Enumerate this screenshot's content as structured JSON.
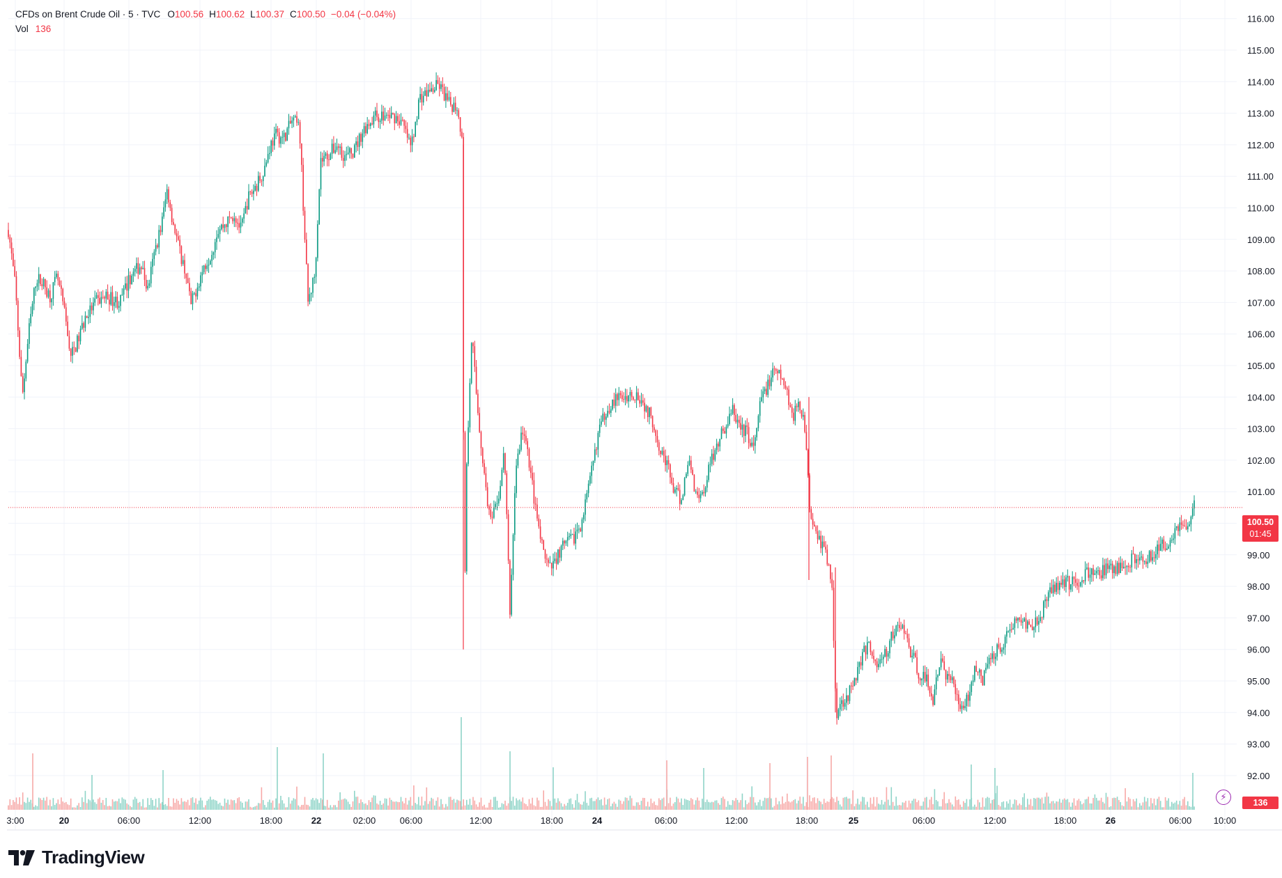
{
  "legend": {
    "symbol": "CFDs on Brent Crude Oil · 5 · TVC",
    "open_label": "O",
    "open_value": "100.56",
    "high_label": "H",
    "high_value": "100.62",
    "low_label": "L",
    "low_value": "100.37",
    "close_label": "C",
    "close_value": "100.50",
    "change": "−0.04 (−0.04%)",
    "volume_label": "Vol",
    "volume_value": "136"
  },
  "price_tag": {
    "price": "100.50",
    "countdown": "01:45"
  },
  "volume_tag": "136",
  "branding": {
    "name": "TradingView"
  },
  "colors": {
    "up": "#089981",
    "down": "#f23645",
    "up_volume": "#8fd4c8",
    "down_volume": "#f7a9a7",
    "grid": "#f0f3fa",
    "text": "#131722"
  },
  "chart_data": {
    "type": "candlestick",
    "title": "CFDs on Brent Crude Oil",
    "interval": "5",
    "source": "TVC",
    "y_axis": {
      "ticks": [
        "92.00",
        "93.00",
        "94.00",
        "95.00",
        "96.00",
        "97.00",
        "98.00",
        "99.00",
        "100.00",
        "101.00",
        "102.00",
        "103.00",
        "104.00",
        "105.00",
        "106.00",
        "107.00",
        "108.00",
        "109.00",
        "110.00",
        "111.00",
        "112.00",
        "113.00",
        "114.00",
        "115.00",
        "116.00"
      ],
      "range": [
        91.5,
        116.5
      ]
    },
    "x_axis": {
      "ticks": [
        "3:00",
        "20",
        "06:00",
        "12:00",
        "18:00",
        "22",
        "02:00",
        "06:00",
        "12:00",
        "18:00",
        "24",
        "06:00",
        "12:00",
        "18:00",
        "25",
        "06:00",
        "12:00",
        "18:00",
        "26",
        "06:00",
        "10:00"
      ],
      "bold": [
        "20",
        "22",
        "24",
        "25",
        "26"
      ]
    },
    "last_close": 100.5,
    "current_volume": 136,
    "path": [
      [
        0,
        109.3
      ],
      [
        10,
        107.5
      ],
      [
        20,
        104.0
      ],
      [
        30,
        106.2
      ],
      [
        40,
        107.8
      ],
      [
        50,
        107.6
      ],
      [
        60,
        107.2
      ],
      [
        70,
        107.8
      ],
      [
        78,
        107.0
      ],
      [
        90,
        105.3
      ],
      [
        100,
        105.8
      ],
      [
        110,
        106.5
      ],
      [
        125,
        107.0
      ],
      [
        140,
        107.2
      ],
      [
        160,
        107.0
      ],
      [
        175,
        107.8
      ],
      [
        190,
        108.2
      ],
      [
        200,
        107.4
      ],
      [
        210,
        108.6
      ],
      [
        220,
        109.5
      ],
      [
        228,
        110.6
      ],
      [
        235,
        109.7
      ],
      [
        245,
        108.7
      ],
      [
        255,
        107.9
      ],
      [
        262,
        106.9
      ],
      [
        272,
        107.6
      ],
      [
        282,
        108.2
      ],
      [
        292,
        108.6
      ],
      [
        300,
        109.3
      ],
      [
        312,
        109.5
      ],
      [
        324,
        109.8
      ],
      [
        334,
        109.3
      ],
      [
        344,
        110.3
      ],
      [
        358,
        110.8
      ],
      [
        368,
        111.3
      ],
      [
        376,
        112.0
      ],
      [
        384,
        112.3
      ],
      [
        395,
        112.2
      ],
      [
        408,
        112.8
      ],
      [
        418,
        112.5
      ],
      [
        430,
        107.0
      ],
      [
        440,
        107.9
      ],
      [
        448,
        111.5
      ],
      [
        460,
        111.7
      ],
      [
        472,
        112.0
      ],
      [
        484,
        111.6
      ],
      [
        496,
        111.8
      ],
      [
        510,
        112.5
      ],
      [
        525,
        112.9
      ],
      [
        540,
        112.9
      ],
      [
        555,
        112.9
      ],
      [
        565,
        112.7
      ],
      [
        578,
        111.9
      ],
      [
        590,
        113.5
      ],
      [
        605,
        113.7
      ],
      [
        618,
        113.9
      ],
      [
        632,
        113.3
      ],
      [
        645,
        113.2
      ],
      [
        652,
        112.0
      ],
      [
        654,
        96.6
      ],
      [
        658,
        102.0
      ],
      [
        665,
        106.1
      ],
      [
        672,
        104.0
      ],
      [
        682,
        101.7
      ],
      [
        692,
        100.0
      ],
      [
        702,
        100.6
      ],
      [
        712,
        102.3
      ],
      [
        720,
        97.1
      ],
      [
        728,
        101.7
      ],
      [
        738,
        103.0
      ],
      [
        748,
        101.9
      ],
      [
        758,
        100.2
      ],
      [
        768,
        99.0
      ],
      [
        778,
        98.5
      ],
      [
        788,
        99.0
      ],
      [
        798,
        99.3
      ],
      [
        810,
        99.5
      ],
      [
        822,
        100.0
      ],
      [
        834,
        101.2
      ],
      [
        846,
        102.8
      ],
      [
        858,
        103.6
      ],
      [
        870,
        103.9
      ],
      [
        882,
        104.0
      ],
      [
        894,
        104.1
      ],
      [
        904,
        104.1
      ],
      [
        914,
        103.7
      ],
      [
        924,
        103.3
      ],
      [
        934,
        102.5
      ],
      [
        946,
        101.8
      ],
      [
        956,
        101.0
      ],
      [
        966,
        100.7
      ],
      [
        976,
        102.1
      ],
      [
        986,
        101.0
      ],
      [
        996,
        100.9
      ],
      [
        1006,
        101.8
      ],
      [
        1018,
        102.6
      ],
      [
        1030,
        103.1
      ],
      [
        1040,
        103.6
      ],
      [
        1050,
        103.0
      ],
      [
        1060,
        102.9
      ],
      [
        1070,
        102.3
      ],
      [
        1080,
        103.9
      ],
      [
        1090,
        104.4
      ],
      [
        1100,
        104.8
      ],
      [
        1110,
        104.6
      ],
      [
        1118,
        104.1
      ],
      [
        1126,
        103.4
      ],
      [
        1134,
        103.7
      ],
      [
        1142,
        103.5
      ],
      [
        1150,
        100.5
      ],
      [
        1158,
        99.9
      ],
      [
        1166,
        99.4
      ],
      [
        1174,
        99.0
      ],
      [
        1182,
        98.0
      ],
      [
        1188,
        94.0
      ],
      [
        1198,
        94.4
      ],
      [
        1210,
        94.7
      ],
      [
        1222,
        95.6
      ],
      [
        1234,
        96.2
      ],
      [
        1246,
        95.5
      ],
      [
        1258,
        95.8
      ],
      [
        1270,
        96.5
      ],
      [
        1282,
        96.8
      ],
      [
        1294,
        96.0
      ],
      [
        1306,
        95.3
      ],
      [
        1318,
        95.0
      ],
      [
        1328,
        94.4
      ],
      [
        1338,
        95.8
      ],
      [
        1348,
        95.0
      ],
      [
        1358,
        94.9
      ],
      [
        1368,
        94.1
      ],
      [
        1378,
        94.5
      ],
      [
        1388,
        95.6
      ],
      [
        1398,
        94.9
      ],
      [
        1408,
        95.8
      ],
      [
        1420,
        96.0
      ],
      [
        1432,
        96.4
      ],
      [
        1444,
        96.9
      ],
      [
        1456,
        96.9
      ],
      [
        1468,
        96.8
      ],
      [
        1478,
        97.0
      ],
      [
        1490,
        97.5
      ],
      [
        1500,
        98.0
      ],
      [
        1512,
        98.2
      ],
      [
        1524,
        98.1
      ],
      [
        1536,
        98.2
      ],
      [
        1548,
        98.4
      ],
      [
        1560,
        98.4
      ],
      [
        1572,
        98.5
      ],
      [
        1584,
        98.5
      ],
      [
        1596,
        98.6
      ],
      [
        1608,
        98.8
      ],
      [
        1620,
        98.9
      ],
      [
        1632,
        98.9
      ],
      [
        1644,
        99.0
      ],
      [
        1656,
        99.3
      ],
      [
        1666,
        99.4
      ],
      [
        1676,
        99.9
      ],
      [
        1686,
        100.0
      ],
      [
        1694,
        99.8
      ],
      [
        1702,
        100.5
      ]
    ],
    "volume_spikes": [
      [
        35,
        1082
      ],
      [
        120,
        1113
      ],
      [
        222,
        1106
      ],
      [
        386,
        1073
      ],
      [
        452,
        1082
      ],
      [
        650,
        1030
      ],
      [
        720,
        1079
      ],
      [
        782,
        1102
      ],
      [
        945,
        1092
      ],
      [
        998,
        1103
      ],
      [
        1093,
        1096
      ],
      [
        1147,
        1087
      ],
      [
        1181,
        1085
      ],
      [
        1382,
        1098
      ],
      [
        1416,
        1103
      ],
      [
        1700,
        1110
      ]
    ]
  }
}
